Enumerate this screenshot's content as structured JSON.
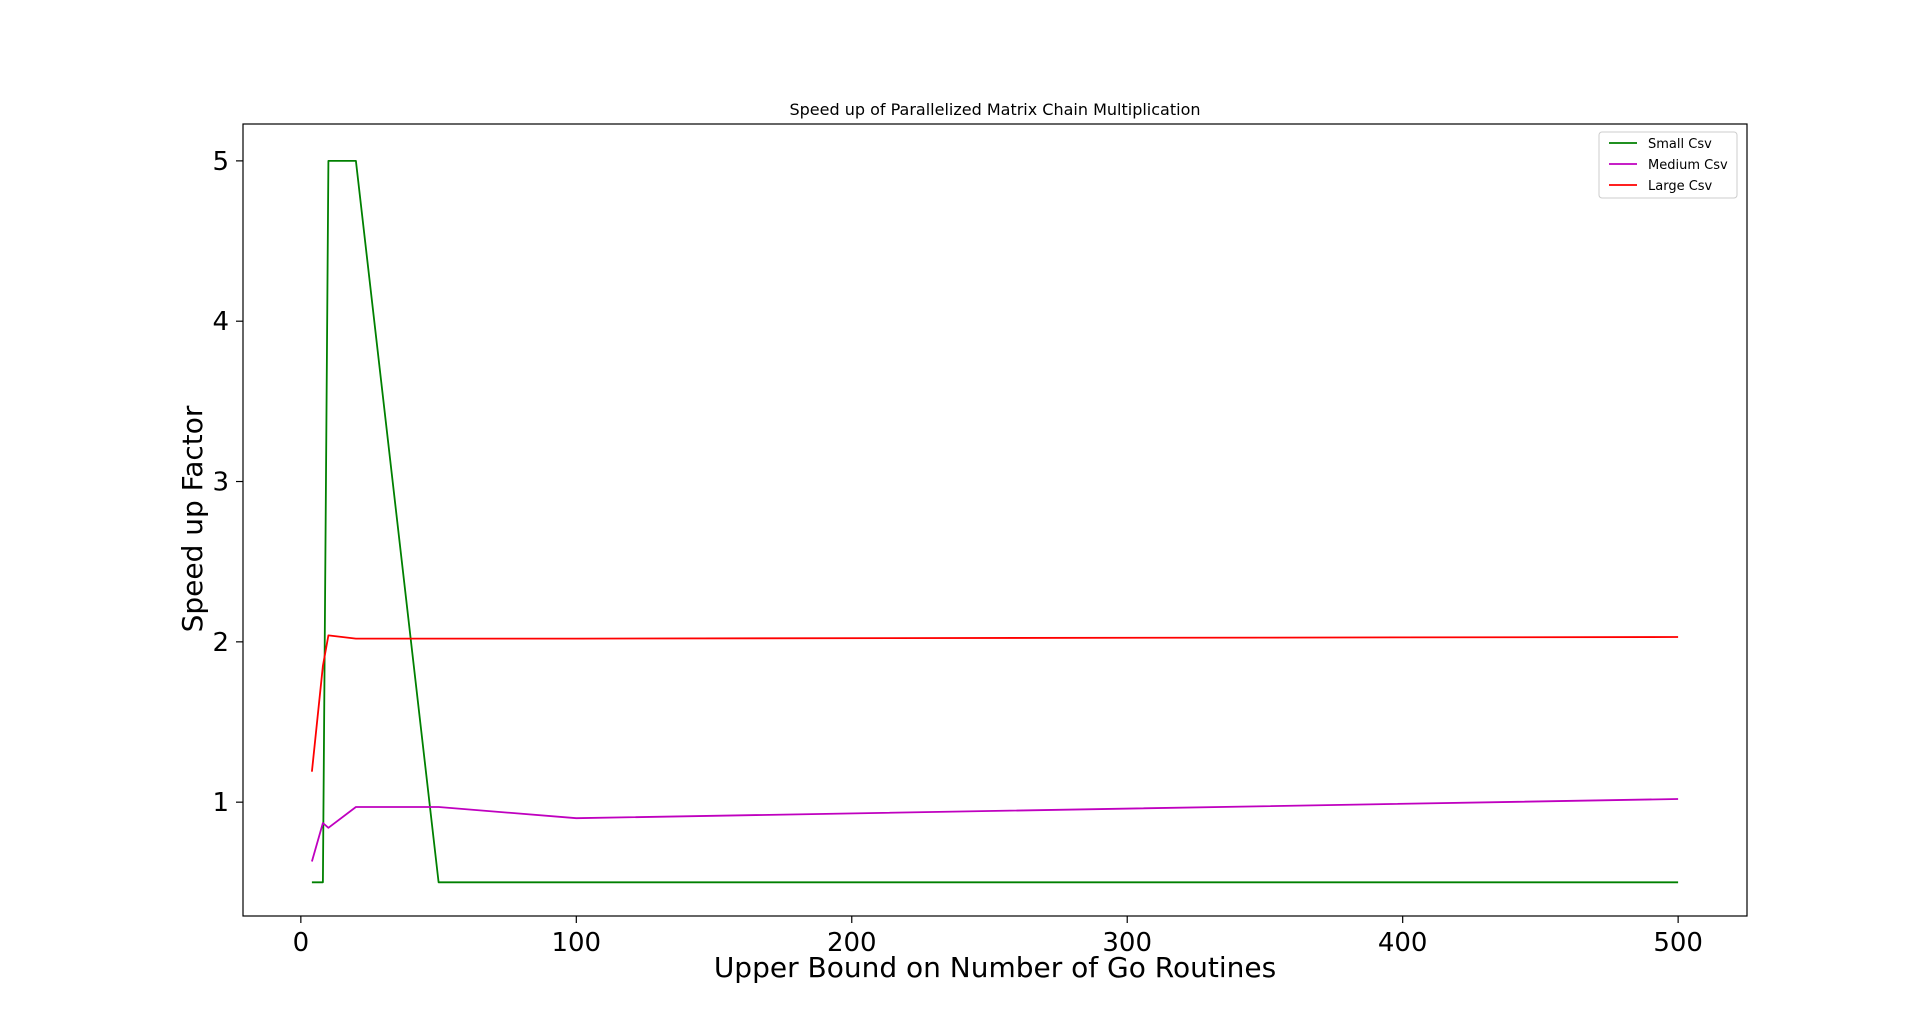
{
  "chart_data": {
    "type": "line",
    "title": "Speed up of Parallelized Matrix Chain Multiplication",
    "xlabel": "Upper Bound on Number of Go Routines",
    "ylabel": "Speed up Factor",
    "xlim": [
      -21,
      525
    ],
    "ylim": [
      0.29,
      5.23
    ],
    "xticks": [
      0,
      100,
      200,
      300,
      400,
      500
    ],
    "yticks": [
      1,
      2,
      3,
      4,
      5
    ],
    "grid": false,
    "legend_position": "top-right",
    "series": [
      {
        "name": "Small Csv",
        "color": "#008000",
        "points": [
          [
            4,
            0.5
          ],
          [
            8,
            0.5
          ],
          [
            10,
            5.0
          ],
          [
            20,
            5.0
          ],
          [
            50,
            0.5
          ],
          [
            100,
            0.5
          ],
          [
            500,
            0.5
          ]
        ]
      },
      {
        "name": "Medium Csv",
        "color": "#bf00bf",
        "points": [
          [
            4,
            0.63
          ],
          [
            8,
            0.87
          ],
          [
            10,
            0.84
          ],
          [
            20,
            0.97
          ],
          [
            50,
            0.97
          ],
          [
            100,
            0.9
          ],
          [
            500,
            1.02
          ]
        ]
      },
      {
        "name": "Large Csv",
        "color": "#ff0000",
        "points": [
          [
            4,
            1.19
          ],
          [
            8,
            1.85
          ],
          [
            10,
            2.04
          ],
          [
            20,
            2.02
          ],
          [
            50,
            2.02
          ],
          [
            100,
            2.02
          ],
          [
            500,
            2.03
          ]
        ]
      }
    ]
  }
}
